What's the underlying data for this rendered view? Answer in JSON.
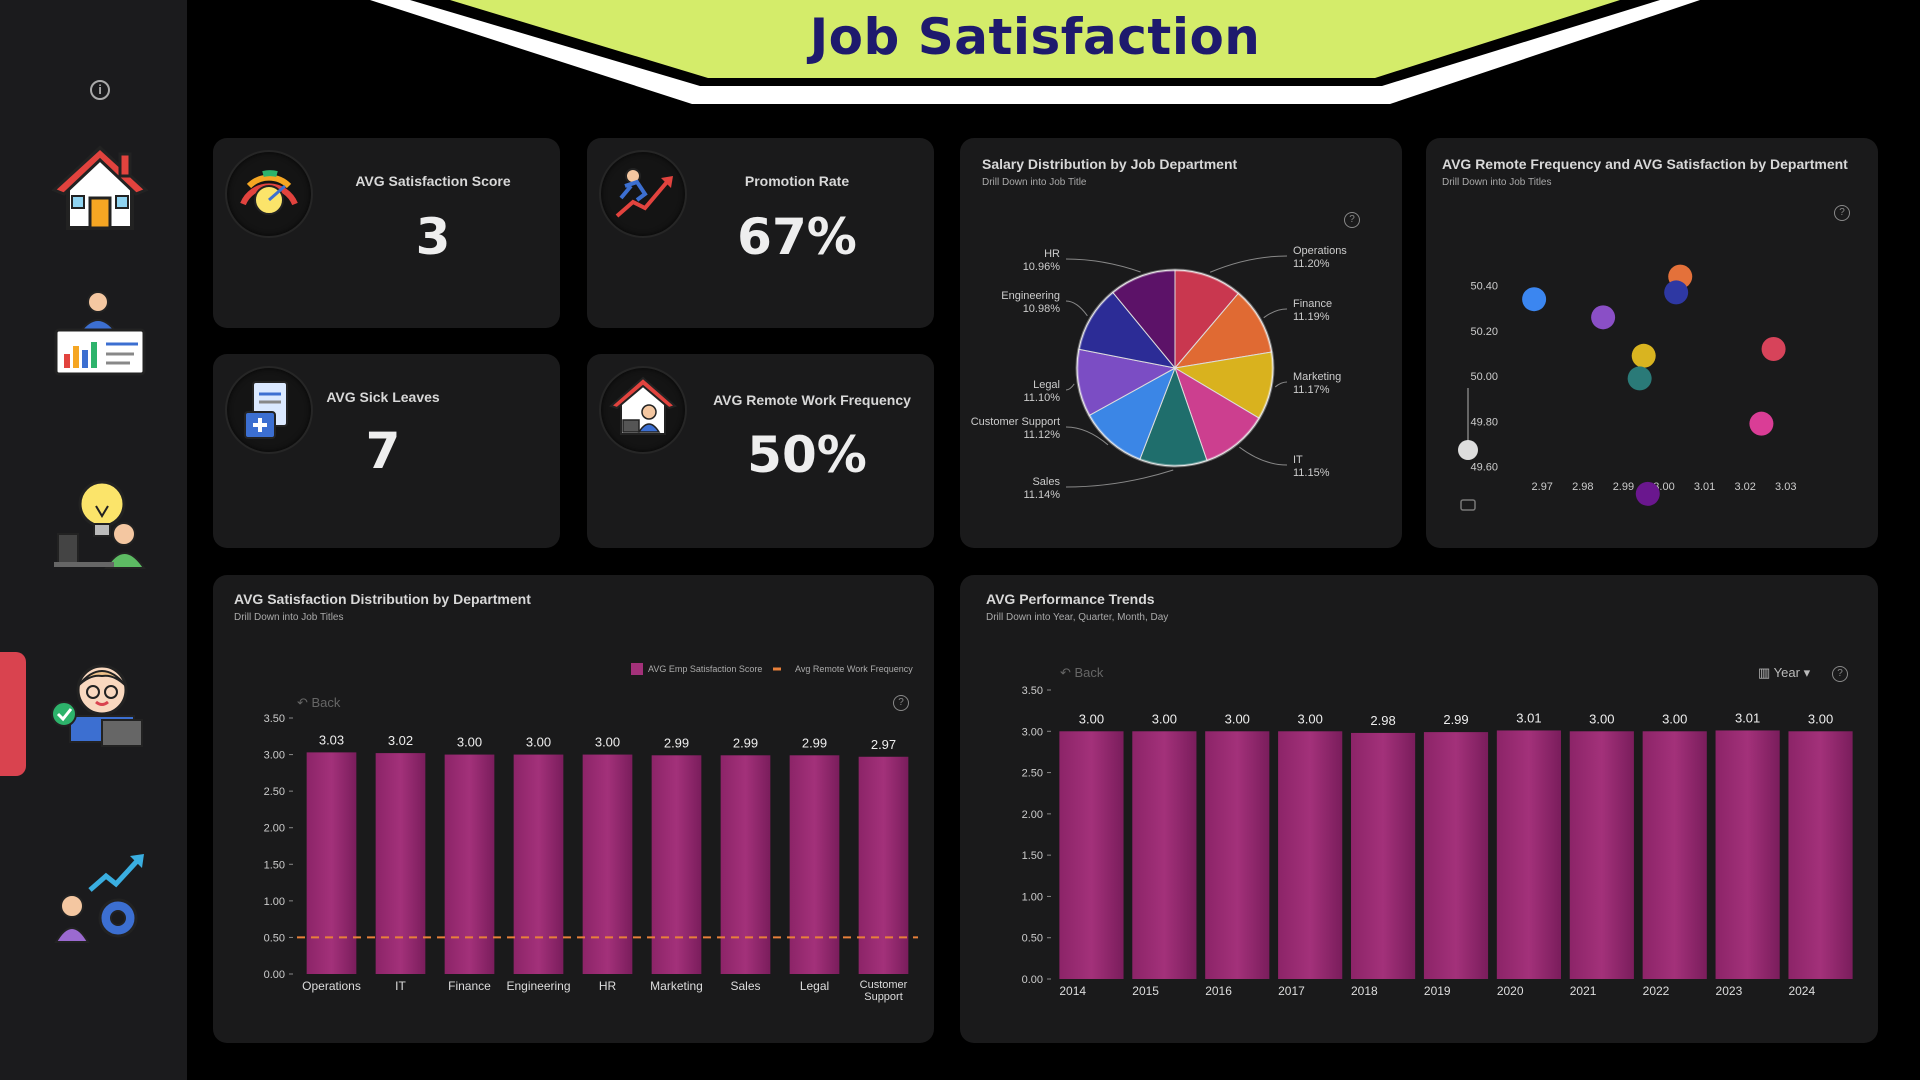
{
  "header": {
    "title": "Job Satisfaction"
  },
  "sidebar": {
    "items": [
      {
        "name": "home"
      },
      {
        "name": "analytics"
      },
      {
        "name": "ideas"
      },
      {
        "name": "satisfaction"
      },
      {
        "name": "performance"
      }
    ],
    "active_index": 3
  },
  "kpis": {
    "satisfaction": {
      "label": "AVG  Satisfaction Score",
      "value": "3"
    },
    "promotion": {
      "label": "Promotion Rate",
      "value": "67%"
    },
    "sick_leaves": {
      "label": "AVG Sick Leaves",
      "value": "7"
    },
    "remote": {
      "label": "AVG Remote Work Frequency",
      "value": "50%"
    }
  },
  "salary_pie": {
    "title": "Salary Distribution by Job Department",
    "subtitle": "Drill Down into Job Title"
  },
  "scatter": {
    "title": "AVG Remote Frequency and AVG Satisfaction by Department",
    "subtitle": "Drill Down into Job Titles"
  },
  "dept_bar": {
    "title": "AVG Satisfaction Distribution by Department",
    "subtitle": "Drill Down into  Job Titles",
    "back_label": "Back",
    "legend": [
      "AVG Emp Satisfaction Score",
      "Avg Remote Work Frequency"
    ]
  },
  "trend_bar": {
    "title": "AVG Performance Trends",
    "subtitle": "Drill Down into Year, Quarter, Month, Day",
    "back_label": "Back",
    "year_label": "Year"
  },
  "colors": {
    "bar": "#a3317a",
    "line": "#e8803a",
    "banner": "#d4ec6a"
  },
  "chart_data": [
    {
      "type": "pie",
      "title": "Salary Distribution by Job Department",
      "slices": [
        {
          "label": "Operations",
          "value": 11.2,
          "text": "11.20%",
          "color": "#c9374f"
        },
        {
          "label": "Finance",
          "value": 11.19,
          "text": "11.19%",
          "color": "#e06a33"
        },
        {
          "label": "Marketing",
          "value": 11.17,
          "text": "11.17%",
          "color": "#d9b21e"
        },
        {
          "label": "IT",
          "value": 11.15,
          "text": "11.15%",
          "color": "#cc3f8f"
        },
        {
          "label": "Sales",
          "value": 11.14,
          "text": "11.14%",
          "color": "#1f6e6c"
        },
        {
          "label": "Customer Support",
          "value": 11.12,
          "text": "11.12%",
          "color": "#3b86e6"
        },
        {
          "label": "Legal",
          "value": 11.1,
          "text": "11.10%",
          "color": "#7b4dc4"
        },
        {
          "label": "Engineering",
          "value": 10.98,
          "text": "10.98%",
          "color": "#2c2c96"
        },
        {
          "label": "HR",
          "value": 10.96,
          "text": "10.96%",
          "color": "#5c1268"
        }
      ]
    },
    {
      "type": "scatter",
      "title": "AVG Remote Frequency and AVG Satisfaction by Department",
      "xticks": [
        "2.97",
        "2.98",
        "2.99",
        "3.00",
        "3.01",
        "3.02",
        "3.03"
      ],
      "yticks": [
        "50.40",
        "50.20",
        "50.00",
        "49.80",
        "49.60"
      ],
      "xlim": [
        2.966,
        3.034
      ],
      "ylim": [
        49.55,
        50.5
      ],
      "points": [
        {
          "x": 2.968,
          "y": 50.34,
          "color": "#3b86f0"
        },
        {
          "x": 2.985,
          "y": 50.26,
          "color": "#8a4fc6"
        },
        {
          "x": 3.004,
          "y": 50.44,
          "color": "#e4713a"
        },
        {
          "x": 3.003,
          "y": 50.37,
          "color": "#2e38a3"
        },
        {
          "x": 2.995,
          "y": 50.09,
          "color": "#d9b420"
        },
        {
          "x": 2.994,
          "y": 49.99,
          "color": "#2a7a78"
        },
        {
          "x": 3.027,
          "y": 50.12,
          "color": "#d7435a"
        },
        {
          "x": 3.024,
          "y": 49.79,
          "color": "#da3d96"
        },
        {
          "x": 2.996,
          "y": 49.48,
          "color": "#6a178e"
        }
      ]
    },
    {
      "type": "bar",
      "title": "AVG Satisfaction Distribution by Department",
      "categories": [
        "Operations",
        "IT",
        "Finance",
        "Engineering",
        "HR",
        "Marketing",
        "Sales",
        "Legal",
        "Customer Support"
      ],
      "series": [
        {
          "name": "AVG Emp Satisfaction Score",
          "values": [
            3.03,
            3.02,
            3.0,
            3.0,
            3.0,
            2.99,
            2.99,
            2.99,
            2.97
          ],
          "labels": [
            "3.03",
            "3.02",
            "3.00",
            "3.00",
            "3.00",
            "2.99",
            "2.99",
            "2.99",
            "2.97"
          ]
        },
        {
          "name": "Avg Remote Work Frequency",
          "values": [
            0.5,
            0.5,
            0.5,
            0.5,
            0.5,
            0.5,
            0.5,
            0.5,
            0.5
          ]
        }
      ],
      "yticks": [
        "3.50",
        "3.00",
        "2.50",
        "2.00",
        "1.50",
        "1.00",
        "0.50",
        "0.00"
      ],
      "ylim": [
        0,
        3.5
      ]
    },
    {
      "type": "bar",
      "title": "AVG Performance Trends",
      "categories": [
        "2014",
        "2015",
        "2016",
        "2017",
        "2018",
        "2019",
        "2020",
        "2021",
        "2022",
        "2023",
        "2024"
      ],
      "values": [
        3.0,
        3.0,
        3.0,
        3.0,
        2.98,
        2.99,
        3.01,
        3.0,
        3.0,
        3.01,
        3.0
      ],
      "labels": [
        "3.00",
        "3.00",
        "3.00",
        "3.00",
        "2.98",
        "2.99",
        "3.01",
        "3.00",
        "3.00",
        "3.01",
        "3.00"
      ],
      "yticks": [
        "3.50",
        "3.00",
        "2.50",
        "2.00",
        "1.50",
        "1.00",
        "0.50",
        "0.00"
      ],
      "ylim": [
        0,
        3.5
      ]
    }
  ]
}
